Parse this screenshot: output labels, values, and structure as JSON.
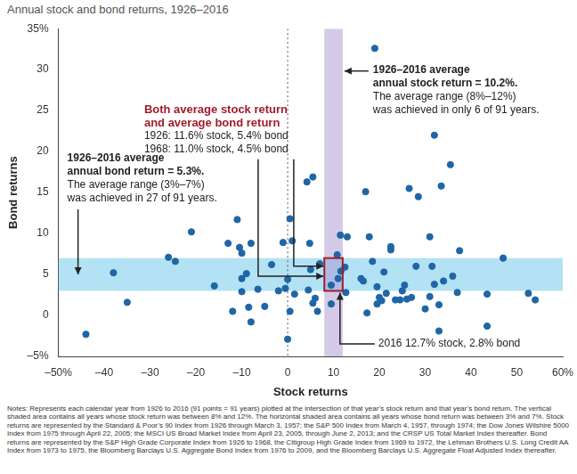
{
  "chart_data": {
    "type": "scatter",
    "title": "Annual stock and bond returns, 1926–2016",
    "x_label": "Stock returns",
    "y_label": "Bond returns",
    "x": [
      -44,
      -38,
      -35,
      -26,
      -24.5,
      -21,
      -16,
      -13,
      -12,
      -11,
      -10.5,
      -10,
      -10,
      -10,
      -9,
      -8.5,
      -8,
      -8,
      -6.5,
      -5,
      -3.5,
      -2,
      -1,
      -0.5,
      0,
      0.5,
      0.5,
      0,
      1,
      1.5,
      4.2,
      4.8,
      4.5,
      5.5,
      5.5,
      5,
      6,
      6.5,
      7,
      9.5,
      9.5,
      11,
      11.6,
      12.7,
      10.8,
      11.5,
      12.5,
      13,
      16,
      16.5,
      17,
      17.3,
      17.8,
      18.5,
      19.5,
      19.5,
      20,
      20.5,
      21,
      21.5,
      22.5,
      22.5,
      23.5,
      24.5,
      25,
      25.5,
      26,
      26.5,
      27,
      28.5,
      28,
      30,
      31,
      31,
      31.5,
      32,
      32,
      33,
      33,
      33.5,
      34,
      35.5,
      36,
      37,
      37.5,
      43.5,
      43.5,
      47,
      52.5,
      54,
      19
    ],
    "values": [
      -2.3,
      5.2,
      1.6,
      7.1,
      6.6,
      10.2,
      3.6,
      8.8,
      0.5,
      11.7,
      8.3,
      7.6,
      4.5,
      2.9,
      5.1,
      1.0,
      8.8,
      -0.8,
      3.2,
      1.1,
      6.2,
      3.0,
      8.9,
      3.3,
      4.4,
      11.8,
      0.5,
      -2.9,
      9.1,
      2.6,
      16.3,
      8.8,
      3.1,
      16.9,
      1.5,
      5.6,
      2.1,
      0.5,
      6.3,
      1.4,
      3.7,
      4.5,
      5.4,
      2.8,
      7.4,
      9.8,
      5.9,
      9.6,
      4.5,
      4.2,
      15.1,
      0.3,
      9.6,
      6.6,
      3.5,
      1.4,
      2.2,
      1.8,
      5.3,
      2.7,
      8.4,
      8.0,
      1.9,
      1.9,
      3.0,
      3.7,
      2.0,
      15.5,
      2.2,
      14.5,
      6.0,
      0.8,
      9.6,
      2.3,
      6.0,
      3.8,
      22,
      1.3,
      -1.9,
      15.8,
      4.2,
      18.4,
      4.8,
      2.8,
      7.9,
      -1.3,
      2.6,
      7.0,
      2.7,
      1.9,
      32.6
    ],
    "color": "#1f66a6",
    "marker": "circle",
    "xlim": [
      -50,
      60
    ],
    "ylim": [
      -5,
      35
    ],
    "xticks": [
      {
        "value": -50,
        "label": "–50%"
      },
      {
        "value": -40,
        "label": "–40"
      },
      {
        "value": -30,
        "label": "–30"
      },
      {
        "value": -20,
        "label": "–20"
      },
      {
        "value": -10,
        "label": "–10"
      },
      0,
      10,
      20,
      30,
      40,
      50,
      {
        "value": 60,
        "label": "60%"
      }
    ],
    "yticks": [
      {
        "value": -5,
        "label": "–5%"
      },
      0,
      5,
      10,
      15,
      20,
      25,
      30,
      {
        "value": 35,
        "label": "35%"
      }
    ],
    "grid": false,
    "x_reference": 0,
    "x_band": [
      8,
      12
    ],
    "y_band": [
      3,
      7
    ],
    "annotations": {
      "both_average": {
        "heading": [
          "Both average stock return",
          "and average bond return"
        ],
        "lines": [
          "1926: 11.6% stock, 5.4% bond",
          "1968: 11.0% stock, 4.5% bond"
        ]
      },
      "stock_average": {
        "heading": [
          "1926–2016 average",
          "annual stock return = 10.2%."
        ],
        "lines": [
          "The average range (8%–12%)",
          "was achieved in only 6 of 91 years."
        ]
      },
      "bond_average": {
        "heading": [
          "1926–2016 average",
          "annual bond return = 5.3%."
        ],
        "lines": [
          "The average range (3%–7%)",
          "was achieved in 27 of 91 years."
        ]
      },
      "year_2016": "2016 12.7% stock, 2.8% bond"
    },
    "notes": "Notes: Represents each calendar year from 1926 to 2016 (91 points = 91 years) plotted at the intersection of that year’s stock return and that year’s bond return. The vertical shaded area contains all years whose stock return was between 8% and 12%. The horizontal shaded area contains all years whose bond return was between 3% and 7%. Stock returns are represented by the Standard & Poor’s 90 Index from 1926 through March 3, 1957; the S&P 500 Index from March 4, 1957, through 1974; the Dow Jones Wilshire 5000 Index from 1975 through April 22, 2005; the MSCI US Broad Market Index from April 23, 2005, through June 2, 2013; and the CRSP US Total Market Index thereafter. Bond returns are represented by the S&P High Grade Corporate Index from 1926 to 1968, the Citigroup High Grade Index from 1969 to 1972, the Lehman Brothers U.S. Long Credit AA Index from 1973 to 1975, the Bloomberg Barclays U.S. Aggregate Bond Index from 1976 to 2009, and the Bloomberg Barclays U.S. Aggregate Float Adjusted Index thereafter."
  }
}
